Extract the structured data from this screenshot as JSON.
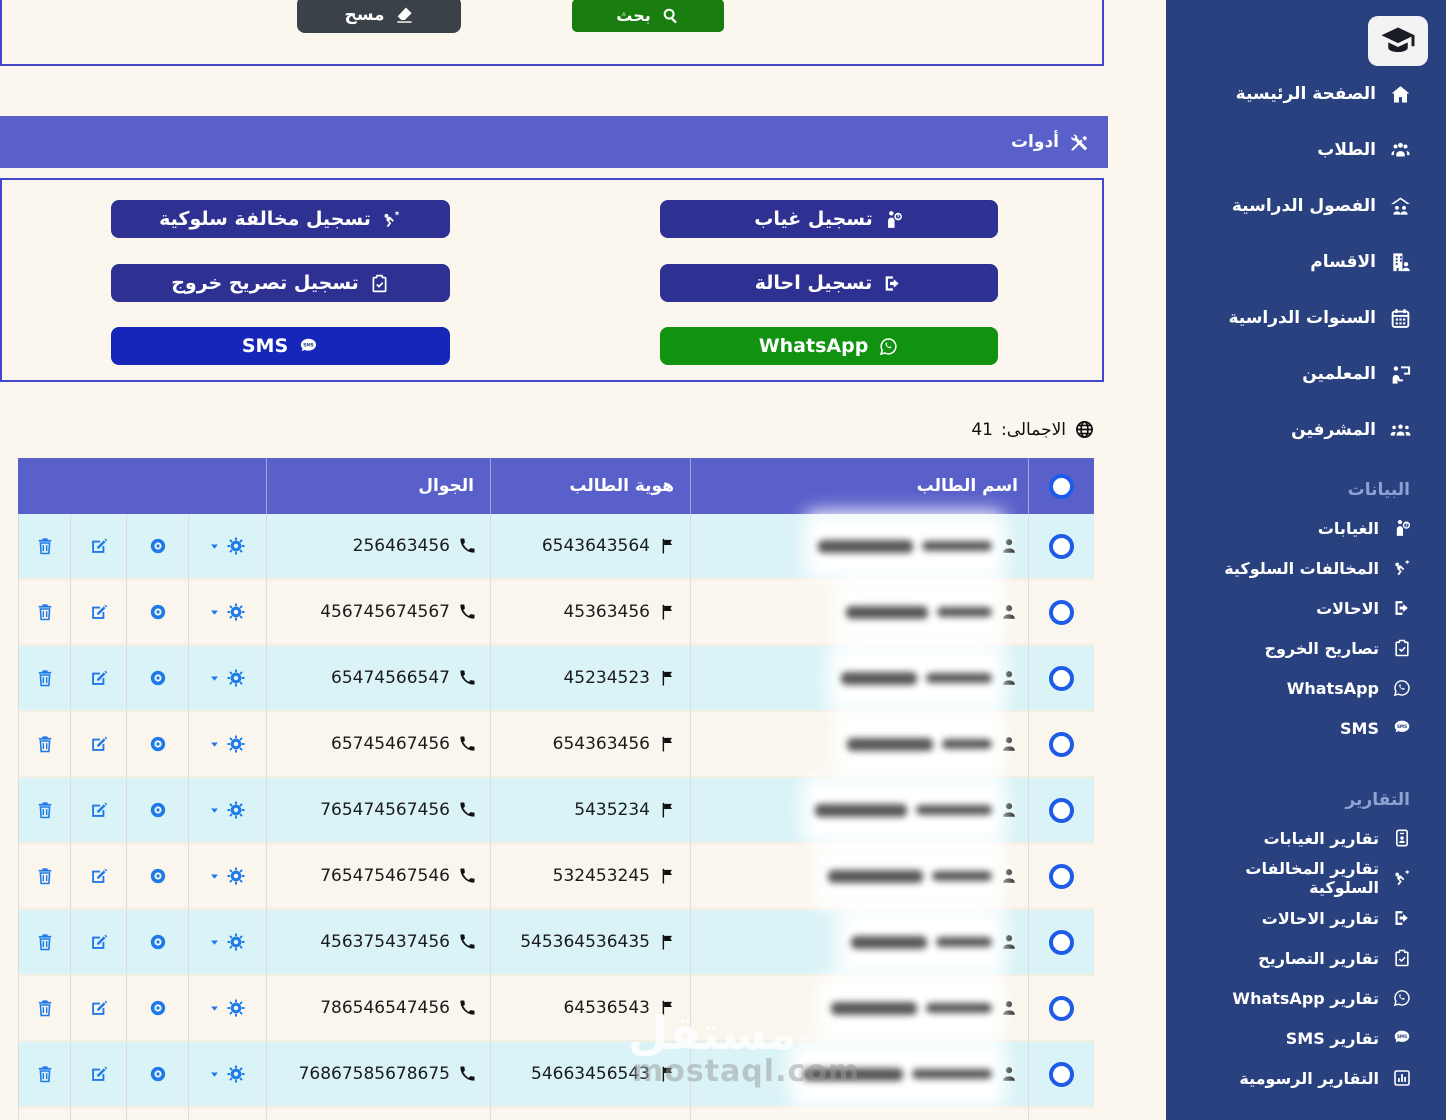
{
  "app": {
    "logo_icon": "graduation-cap-icon"
  },
  "sidebar": {
    "main_items": [
      {
        "label": "الصفحة الرئيسية",
        "icon": "home-icon"
      },
      {
        "label": "الطلاب",
        "icon": "students-icon"
      },
      {
        "label": "الفصول الدراسية",
        "icon": "classes-icon"
      },
      {
        "label": "الاقسام",
        "icon": "departments-icon"
      },
      {
        "label": "السنوات الدراسية",
        "icon": "calendar-icon"
      },
      {
        "label": "المعلمين",
        "icon": "teacher-icon"
      },
      {
        "label": "المشرفين",
        "icon": "supervisors-icon"
      }
    ],
    "data_section": {
      "title": "البيانات",
      "items": [
        {
          "label": "الغيابات",
          "icon": "absence-icon"
        },
        {
          "label": "المخالفات السلوكية",
          "icon": "violation-icon"
        },
        {
          "label": "الاحالات",
          "icon": "referral-icon"
        },
        {
          "label": "تصاريح الخروج",
          "icon": "exit-permit-icon"
        },
        {
          "label": "WhatsApp",
          "icon": "whatsapp-icon"
        },
        {
          "label": "SMS",
          "icon": "sms-icon"
        }
      ]
    },
    "reports_section": {
      "title": "التقارير",
      "items": [
        {
          "label": "تقارير الغيابات",
          "icon": "id-card-icon"
        },
        {
          "label": "تقارير المخالفات السلوكية",
          "icon": "violation-icon"
        },
        {
          "label": "تقارير الاحالات",
          "icon": "referral-icon"
        },
        {
          "label": "تقارير التصاريح",
          "icon": "exit-permit-icon"
        },
        {
          "label": "تقارير WhatsApp",
          "icon": "whatsapp-icon"
        },
        {
          "label": "تقارير SMS",
          "icon": "sms-icon"
        },
        {
          "label": "التقارير الرسومية",
          "icon": "chart-icon"
        }
      ]
    }
  },
  "search_box": {
    "clear_label": "مسح",
    "search_label": "بحث"
  },
  "toolbar": {
    "title": "أدوات",
    "icon": "tools-icon"
  },
  "tools": {
    "buttons_right": [
      {
        "label": "تسجيل غياب",
        "icon": "absence-icon",
        "color": "#2e3192"
      },
      {
        "label": "تسجيل احالة",
        "icon": "referral-icon",
        "color": "#2e3192"
      },
      {
        "label": "WhatsApp",
        "icon": "whatsapp-icon",
        "color": "#119211"
      }
    ],
    "buttons_left": [
      {
        "label": "تسجيل مخالفة سلوكية",
        "icon": "violation-icon",
        "color": "#2e3192"
      },
      {
        "label": "تسجيل تصريح خروج",
        "icon": "exit-permit-icon",
        "color": "#2e3192"
      },
      {
        "label": "SMS",
        "icon": "sms-icon",
        "color": "#1526b8"
      }
    ]
  },
  "summary": {
    "total_label": "الاجمالى:",
    "total_value": "41"
  },
  "table": {
    "headers": {
      "name": "اسم الطالب",
      "id": "هوية الطالب",
      "phone": "الجوال"
    },
    "rows": [
      {
        "student_id": "6543643564",
        "phone": "256463456"
      },
      {
        "student_id": "45363456",
        "phone": "456745674567"
      },
      {
        "student_id": "45234523",
        "phone": "65474566547"
      },
      {
        "student_id": "654363456",
        "phone": "65745467456"
      },
      {
        "student_id": "5435234",
        "phone": "765474567456"
      },
      {
        "student_id": "532453245",
        "phone": "765475467546"
      },
      {
        "student_id": "545364536435",
        "phone": "456375437456"
      },
      {
        "student_id": "64536543",
        "phone": "786546547456"
      },
      {
        "student_id": "54663456543",
        "phone": "76867585678675"
      }
    ]
  },
  "watermark": {
    "line1": "مستقل",
    "line2": "mostaql.com"
  },
  "colors": {
    "sidebar_bg": "#2a4180",
    "purple": "#5a60ca",
    "indigo_button": "#2e3192",
    "green_search": "#197d10",
    "green_whatsapp": "#119211",
    "blue_sms": "#1526b8",
    "dark_clear": "#3a4148",
    "row_cyan": "#d9f3f7",
    "row_cream": "#faf6ed",
    "action_icon": "#1e7ae8",
    "radio_border": "#1d5ce8",
    "panel_border": "#4448c8"
  }
}
